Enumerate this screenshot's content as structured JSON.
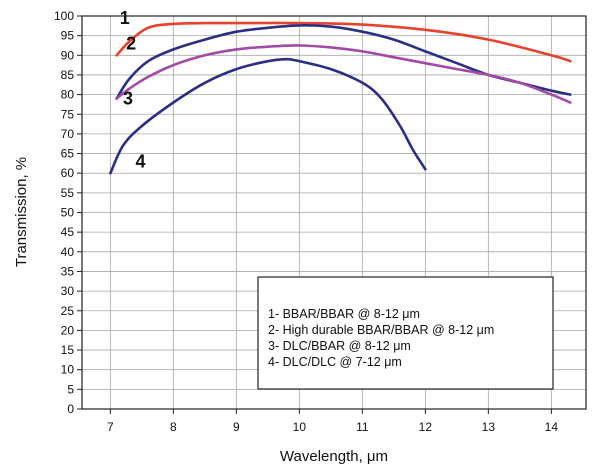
{
  "chart_data": {
    "type": "line",
    "xlabel": "Wavelength, μm",
    "ylabel": "Transmission, %",
    "xlim": [
      6.55,
      14.55
    ],
    "ylim": [
      0,
      100
    ],
    "x_ticks": [
      7,
      8,
      9,
      10,
      11,
      12,
      13,
      14
    ],
    "x_tick_labels": [
      "7",
      "8",
      "9",
      "10",
      "11",
      "12",
      "13",
      "14"
    ],
    "y_ticks": [
      0,
      5,
      10,
      15,
      20,
      25,
      30,
      35,
      40,
      45,
      50,
      55,
      60,
      65,
      70,
      75,
      80,
      85,
      90,
      95,
      100
    ],
    "y_tick_labels": [
      "0",
      "5",
      "10",
      "15",
      "20",
      "25",
      "30",
      "35",
      "40",
      "45",
      "50",
      "55",
      "60",
      "65",
      "70",
      "75",
      "80",
      "85",
      "90",
      "95",
      "100"
    ],
    "grid": true,
    "legend_position": "bottom-right",
    "series": [
      {
        "name": "1- BBAR/BBAR @ 8-12 μm",
        "label": "1",
        "label_at": [
          7.15,
          98
        ],
        "color": "#e8412c",
        "x": [
          7.1,
          7.3,
          7.6,
          8.0,
          8.5,
          9.0,
          10.0,
          11.0,
          12.0,
          13.0,
          14.0,
          14.3
        ],
        "y": [
          90,
          93.5,
          97,
          98,
          98.2,
          98.2,
          98.2,
          97.8,
          96.5,
          94,
          90,
          88.5
        ]
      },
      {
        "name": "2- High durable BBAR/BBAR @ 8-12 μm",
        "label": "2",
        "label_at": [
          7.25,
          91.5
        ],
        "color": "#2b2f84",
        "x": [
          7.1,
          7.3,
          7.6,
          8.0,
          8.5,
          9.0,
          9.5,
          10.0,
          10.5,
          11.0,
          11.5,
          12.0,
          12.5,
          13.0,
          13.5,
          14.0,
          14.3
        ],
        "y": [
          79,
          84,
          88.5,
          91.5,
          94,
          96,
          97,
          97.6,
          97.3,
          96,
          94,
          91,
          88,
          85,
          83,
          81,
          80
        ]
      },
      {
        "name": "3- DLC/BBAR @ 8-12 μm",
        "label": "3",
        "label_at": [
          7.2,
          77.5
        ],
        "color": "#a24aa6",
        "x": [
          7.1,
          7.3,
          7.6,
          8.0,
          8.5,
          9.0,
          9.5,
          10.0,
          10.5,
          11.0,
          11.5,
          12.0,
          12.5,
          13.0,
          13.5,
          14.0,
          14.3
        ],
        "y": [
          79,
          81.5,
          84.5,
          87.5,
          90,
          91.5,
          92.2,
          92.5,
          92,
          91,
          89.5,
          88,
          86.5,
          85,
          83,
          80,
          78
        ]
      },
      {
        "name": "4- DLC/DLC @ 7-12 μm",
        "label": "4",
        "label_at": [
          7.4,
          61.5
        ],
        "color": "#2b2f84",
        "x": [
          7.0,
          7.2,
          7.5,
          8.0,
          8.5,
          9.0,
          9.5,
          9.8,
          10.0,
          10.5,
          11.0,
          11.3,
          11.6,
          11.8,
          12.0
        ],
        "y": [
          60,
          67,
          72,
          78,
          83,
          86.5,
          88.5,
          89,
          88.5,
          86.5,
          83,
          79,
          72,
          66,
          61
        ]
      }
    ]
  }
}
